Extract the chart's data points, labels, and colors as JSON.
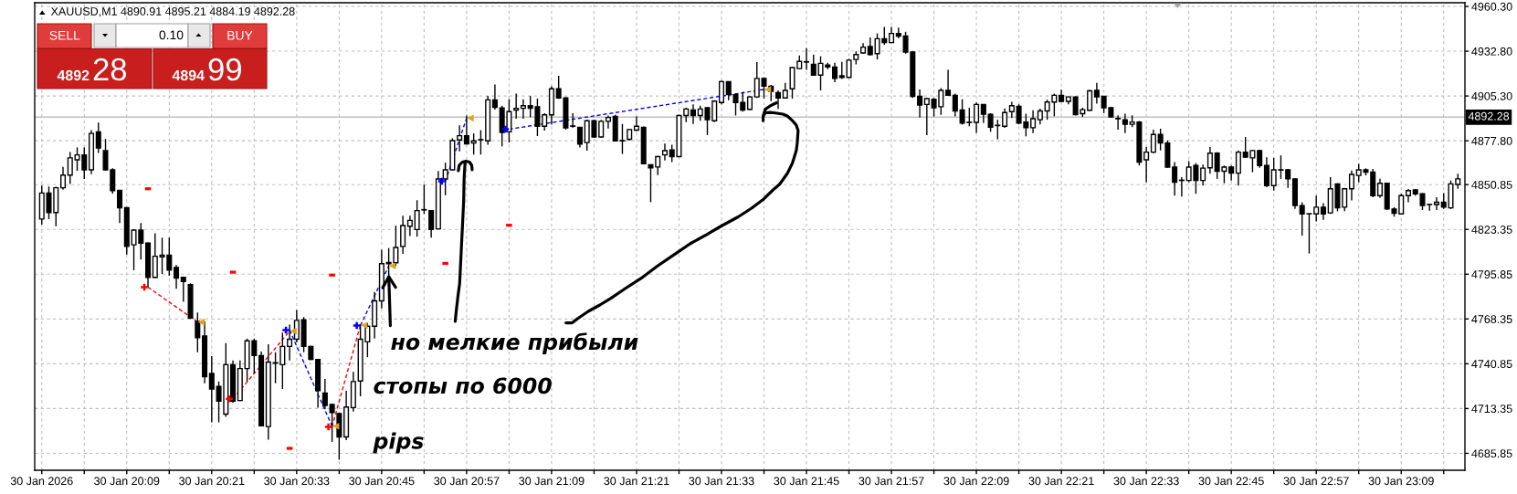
{
  "chart_data": {
    "type": "candlestick",
    "title": "XAUUSD,M1 4890.91 4895.21 4884.19 4892.28",
    "annotations": [
      "SELL",
      "0.10",
      "BUY",
      "4892",
      "28",
      "4894",
      "99",
      {
        "text": "но мелкие прибыли",
        "x": "2026-01-30T20:46",
        "y": 4796
      },
      "стопы по 6000\npips"
    ],
    "xlim": [
      "2026-01-30T19:56",
      "2026-01-30T23:18"
    ],
    "ylim": [
      4675.45,
      4962.55
    ],
    "xticks": [
      {
        "value": "2026-01-30T19:57",
        "label": "30 Jan 2026"
      },
      {
        "value": "2026-01-30T20:03",
        "label": null
      },
      {
        "value": "2026-01-30T20:09",
        "label": "30 Jan 20:09"
      },
      {
        "value": "2026-01-30T20:15",
        "label": null
      },
      {
        "value": "2026-01-30T20:21",
        "label": "30 Jan 20:21"
      },
      {
        "value": "2026-01-30T20:27",
        "label": null
      },
      {
        "value": "2026-01-30T20:33",
        "label": "30 Jan 20:33"
      },
      {
        "value": "2026-01-30T20:39",
        "label": null
      },
      {
        "value": "2026-01-30T20:45",
        "label": "30 Jan 20:45"
      },
      {
        "value": "2026-01-30T20:51",
        "label": null
      },
      {
        "value": "2026-01-30T20:57",
        "label": "30 Jan 20:57"
      },
      {
        "value": "2026-01-30T21:03",
        "label": null
      },
      {
        "value": "2026-01-30T21:09",
        "label": "30 Jan 21:09"
      },
      {
        "value": "2026-01-30T21:15",
        "label": null
      },
      {
        "value": "2026-01-30T21:21",
        "label": "30 Jan 21:21"
      },
      {
        "value": "2026-01-30T21:27",
        "label": null
      },
      {
        "value": "2026-01-30T21:33",
        "label": "30 Jan 21:33"
      },
      {
        "value": "2026-01-30T21:39",
        "label": null
      },
      {
        "value": "2026-01-30T21:45",
        "label": "30 Jan 21:45"
      },
      {
        "value": "2026-01-30T21:51",
        "label": null
      },
      {
        "value": "2026-01-30T21:57",
        "label": "30 Jan 21:57"
      },
      {
        "value": "2026-01-30T22:03",
        "label": null
      },
      {
        "value": "2026-01-30T22:09",
        "label": "30 Jan 22:09"
      },
      {
        "value": "2026-01-30T22:15",
        "label": null
      },
      {
        "value": "2026-01-30T22:21",
        "label": "30 Jan 22:21"
      },
      {
        "value": "2026-01-30T22:27",
        "label": null
      },
      {
        "value": "2026-01-30T22:33",
        "label": "30 Jan 22:33"
      },
      {
        "value": "2026-01-30T22:39",
        "label": null
      },
      {
        "value": "2026-01-30T22:45",
        "label": "30 Jan 22:45"
      },
      {
        "value": "2026-01-30T22:51",
        "label": null
      },
      {
        "value": "2026-01-30T22:57",
        "label": "30 Jan 22:57"
      },
      {
        "value": "2026-01-30T23:03",
        "label": null
      },
      {
        "value": "2026-01-30T23:09",
        "label": "30 Jan 23:09"
      },
      {
        "value": "2026-01-30T23:15",
        "label": null
      }
    ],
    "yticks": [
      4685.85,
      4713.35,
      4740.85,
      4768.35,
      4795.85,
      4823.35,
      4850.85,
      {
        "value": 4877.8,
        "label": "4877.80"
      },
      {
        "value": 4905.3,
        "label": "4905.30"
      },
      {
        "value": 4932.8,
        "label": "4932.80"
      },
      {
        "value": 4960.3,
        "label": "4960.30"
      }
    ],
    "grid": true,
    "ref_lines": [
      {
        "axis": "y",
        "value": 4892.28,
        "label": "4892.28",
        "color": "#c0c0c0"
      }
    ],
    "series": [
      {
        "color": "#000000",
        "x": [
          "2026-01-30T19:57",
          "2026-01-30T19:58",
          "2026-01-30T19:59",
          "2026-01-30T20:00",
          "2026-01-30T20:01",
          "2026-01-30T20:02",
          "2026-01-30T20:03",
          "2026-01-30T20:04",
          "2026-01-30T20:05",
          "2026-01-30T20:06",
          "2026-01-30T20:07",
          "2026-01-30T20:08",
          "2026-01-30T20:09",
          "2026-01-30T20:10",
          "2026-01-30T20:11",
          "2026-01-30T20:12",
          "2026-01-30T20:13",
          "2026-01-30T20:14",
          "2026-01-30T20:15",
          "2026-01-30T20:16",
          "2026-01-30T20:17",
          "2026-01-30T20:18",
          "2026-01-30T20:19",
          "2026-01-30T20:20",
          "2026-01-30T20:21",
          "2026-01-30T20:22",
          "2026-01-30T20:23",
          "2026-01-30T20:24",
          "2026-01-30T20:25",
          "2026-01-30T20:26",
          "2026-01-30T20:27",
          "2026-01-30T20:28",
          "2026-01-30T20:29",
          "2026-01-30T20:30",
          "2026-01-30T20:31",
          "2026-01-30T20:32",
          "2026-01-30T20:33",
          "2026-01-30T20:34",
          "2026-01-30T20:35",
          "2026-01-30T20:36",
          "2026-01-30T20:37",
          "2026-01-30T20:38",
          "2026-01-30T20:39",
          "2026-01-30T20:40",
          "2026-01-30T20:41",
          "2026-01-30T20:42",
          "2026-01-30T20:43",
          "2026-01-30T20:44",
          "2026-01-30T20:45",
          "2026-01-30T20:46",
          "2026-01-30T20:47",
          "2026-01-30T20:48",
          "2026-01-30T20:49",
          "2026-01-30T20:50",
          "2026-01-30T20:51",
          "2026-01-30T20:52",
          "2026-01-30T20:53",
          "2026-01-30T20:54",
          "2026-01-30T20:55",
          "2026-01-30T20:56",
          "2026-01-30T20:57",
          "2026-01-30T20:58",
          "2026-01-30T20:59",
          "2026-01-30T21:00",
          "2026-01-30T21:01",
          "2026-01-30T21:02",
          "2026-01-30T21:03",
          "2026-01-30T21:04",
          "2026-01-30T21:05",
          "2026-01-30T21:06",
          "2026-01-30T21:07",
          "2026-01-30T21:08",
          "2026-01-30T21:09",
          "2026-01-30T21:10",
          "2026-01-30T21:11",
          "2026-01-30T21:12",
          "2026-01-30T21:13",
          "2026-01-30T21:14",
          "2026-01-30T21:15",
          "2026-01-30T21:16",
          "2026-01-30T21:17",
          "2026-01-30T21:18",
          "2026-01-30T21:19",
          "2026-01-30T21:20",
          "2026-01-30T21:21",
          "2026-01-30T21:22",
          "2026-01-30T21:23",
          "2026-01-30T21:24",
          "2026-01-30T21:25",
          "2026-01-30T21:26",
          "2026-01-30T21:27",
          "2026-01-30T21:28",
          "2026-01-30T21:29",
          "2026-01-30T21:30",
          "2026-01-30T21:31",
          "2026-01-30T21:32",
          "2026-01-30T21:33",
          "2026-01-30T21:34",
          "2026-01-30T21:35",
          "2026-01-30T21:36",
          "2026-01-30T21:37",
          "2026-01-30T21:38",
          "2026-01-30T21:39",
          "2026-01-30T21:40",
          "2026-01-30T21:41",
          "2026-01-30T21:42",
          "2026-01-30T21:43",
          "2026-01-30T21:44",
          "2026-01-30T21:45",
          "2026-01-30T21:46",
          "2026-01-30T21:47",
          "2026-01-30T21:48",
          "2026-01-30T21:49",
          "2026-01-30T21:50",
          "2026-01-30T21:51",
          "2026-01-30T21:52",
          "2026-01-30T21:53",
          "2026-01-30T21:54",
          "2026-01-30T21:55",
          "2026-01-30T21:56",
          "2026-01-30T21:57",
          "2026-01-30T21:58",
          "2026-01-30T21:59",
          "2026-01-30T22:00",
          "2026-01-30T22:01",
          "2026-01-30T22:02",
          "2026-01-30T22:03",
          "2026-01-30T22:04",
          "2026-01-30T22:05",
          "2026-01-30T22:06",
          "2026-01-30T22:07",
          "2026-01-30T22:08",
          "2026-01-30T22:09",
          "2026-01-30T22:10",
          "2026-01-30T22:11",
          "2026-01-30T22:12",
          "2026-01-30T22:13",
          "2026-01-30T22:14",
          "2026-01-30T22:15",
          "2026-01-30T22:16",
          "2026-01-30T22:17",
          "2026-01-30T22:18",
          "2026-01-30T22:19",
          "2026-01-30T22:20",
          "2026-01-30T22:21",
          "2026-01-30T22:22",
          "2026-01-30T22:23",
          "2026-01-30T22:24",
          "2026-01-30T22:25",
          "2026-01-30T22:26",
          "2026-01-30T22:27",
          "2026-01-30T22:28",
          "2026-01-30T22:29",
          "2026-01-30T22:30",
          "2026-01-30T22:31",
          "2026-01-30T22:32",
          "2026-01-30T22:33",
          "2026-01-30T22:34",
          "2026-01-30T22:35",
          "2026-01-30T22:36",
          "2026-01-30T22:37",
          "2026-01-30T22:38",
          "2026-01-30T22:39",
          "2026-01-30T22:40",
          "2026-01-30T22:41",
          "2026-01-30T22:42",
          "2026-01-30T22:43",
          "2026-01-30T22:44",
          "2026-01-30T22:45",
          "2026-01-30T22:46",
          "2026-01-30T22:47",
          "2026-01-30T22:48",
          "2026-01-30T22:49",
          "2026-01-30T22:50",
          "2026-01-30T22:51",
          "2026-01-30T22:52",
          "2026-01-30T22:53",
          "2026-01-30T22:54",
          "2026-01-30T22:55",
          "2026-01-30T22:56",
          "2026-01-30T22:57",
          "2026-01-30T22:58",
          "2026-01-30T22:59",
          "2026-01-30T23:00",
          "2026-01-30T23:01",
          "2026-01-30T23:02",
          "2026-01-30T23:03",
          "2026-01-30T23:04",
          "2026-01-30T23:05",
          "2026-01-30T23:06",
          "2026-01-30T23:07",
          "2026-01-30T23:08",
          "2026-01-30T23:09",
          "2026-01-30T23:10",
          "2026-01-30T23:11",
          "2026-01-30T23:12",
          "2026-01-30T23:13",
          "2026-01-30T23:14",
          "2026-01-30T23:15",
          "2026-01-30T23:16",
          "2026-01-30T23:17"
        ],
        "ohlc": [
          [
            4829.7,
            4850.3,
            4826.3,
            4845.7
          ],
          [
            4845.7,
            4849.7,
            4829.7,
            4833.7
          ],
          [
            4833.7,
            4849.5,
            4825.3,
            4848.9
          ],
          [
            4848.9,
            4861.7,
            4847.7,
            4856.7
          ],
          [
            4856.7,
            4870.9,
            4851.3,
            4867.3
          ],
          [
            4866.1,
            4873.7,
            4859.3,
            4869.1
          ],
          [
            4869.1,
            4873.7,
            4854.3,
            4859.9
          ],
          [
            4859.9,
            4884.3,
            4857.3,
            4882.3
          ],
          [
            4883.3,
            4888.9,
            4870.3,
            4873.3
          ],
          [
            4871.7,
            4878.9,
            4859.5,
            4859.9
          ],
          [
            4859.9,
            4860.9,
            4845.3,
            4847.1
          ],
          [
            4847.3,
            4847.5,
            4827.3,
            4836.7
          ],
          [
            4836.7,
            4837.1,
            4807.9,
            4812.9
          ],
          [
            4813.9,
            4823.5,
            4798.3,
            4822.9
          ],
          [
            4822.9,
            4827.3,
            4804.9,
            4814.9
          ],
          [
            4814.9,
            4815.3,
            4787.9,
            4793.9
          ],
          [
            4793.9,
            4820.9,
            4793.5,
            4806.9
          ],
          [
            4806.5,
            4818.3,
            4795.9,
            4807.5
          ],
          [
            4807.5,
            4818.3,
            4794.9,
            4798.3
          ],
          [
            4799.9,
            4801.5,
            4786.9,
            4793.5
          ],
          [
            4793.9,
            4794.3,
            4778.9,
            4791.3
          ],
          [
            4789.5,
            4790.3,
            4768.3,
            4768.9
          ],
          [
            4766.9,
            4772.3,
            4747.9,
            4756.9
          ],
          [
            4757.9,
            4766.9,
            4728.9,
            4732.9
          ],
          [
            4734.9,
            4745.5,
            4704.9,
            4725.3
          ],
          [
            4726.9,
            4729.9,
            4704.9,
            4717.9
          ],
          [
            4709.9,
            4753.5,
            4708.3,
            4740.3
          ],
          [
            4740.3,
            4742.9,
            4716.9,
            4717.9
          ],
          [
            4718.3,
            4742.9,
            4717.9,
            4737.9
          ],
          [
            4737.9,
            4756.3,
            4729.9,
            4754.9
          ],
          [
            4754.9,
            4756.3,
            4734.9,
            4745.9
          ],
          [
            4745.9,
            4748.3,
            4702.3,
            4702.7
          ],
          [
            4702.3,
            4752.9,
            4694.3,
            4741.9
          ],
          [
            4741.5,
            4747.9,
            4728.9,
            4741.2
          ],
          [
            4740.3,
            4759.9,
            4725.3,
            4751.5
          ],
          [
            4751.5,
            4764.9,
            4742.9,
            4755.9
          ],
          [
            4755.9,
            4773.9,
            4753.9,
            4767.5
          ],
          [
            4767.9,
            4769.5,
            4747.9,
            4751.5
          ],
          [
            4751.5,
            4751.9,
            4743.1,
            4743.5
          ],
          [
            4743.5,
            4743.9,
            4713.9,
            4724.3
          ],
          [
            4722.9,
            4731.5,
            4712.9,
            4715.3
          ],
          [
            4715.9,
            4716.1,
            4692.9,
            4710.9
          ],
          [
            4710.3,
            4710.9,
            4681.9,
            4695.9
          ],
          [
            4695.9,
            4724.3,
            4693.9,
            4714.3
          ],
          [
            4713.9,
            4735.9,
            4711.5,
            4729.9
          ],
          [
            4730.3,
            4764.9,
            4720.9,
            4755.9
          ],
          [
            4754.3,
            4765.9,
            4744.9,
            4763.9
          ],
          [
            4763.9,
            4784.9,
            4756.3,
            4779.5
          ],
          [
            4779.5,
            4810.9,
            4774.9,
            4802.3
          ],
          [
            4803.1,
            4811.9,
            4788.3,
            4802.3
          ],
          [
            4802.9,
            4825.7,
            4800.9,
            4812.3
          ],
          [
            4812.9,
            4831.7,
            4808.3,
            4825.7
          ],
          [
            4825.3,
            4831.7,
            4819.3,
            4828.9
          ],
          [
            4823.3,
            4841.3,
            4818.9,
            4834.9
          ],
          [
            4835.3,
            4850.9,
            4832.9,
            4835.5
          ],
          [
            4834.9,
            4835.3,
            4818.3,
            4823.3
          ],
          [
            4823.7,
            4859.3,
            4823.3,
            4854.3
          ],
          [
            4854.3,
            4864.3,
            4844.3,
            4859.9
          ],
          [
            4859.9,
            4879.3,
            4859.5,
            4877.9
          ],
          [
            4878.3,
            4887.3,
            4871.3,
            4880.9
          ],
          [
            4880.9,
            4893.3,
            4875.5,
            4875.9
          ],
          [
            4876.5,
            4882.3,
            4869.3,
            4877.7
          ],
          [
            4878.3,
            4884.3,
            4869.3,
            4878.5
          ],
          [
            4877.7,
            4905.3,
            4875.3,
            4902.9
          ],
          [
            4902.9,
            4912.3,
            4896.9,
            4898.3
          ],
          [
            4897.9,
            4899.3,
            4874.3,
            4882.9
          ],
          [
            4883.3,
            4903.3,
            4876.7,
            4895.7
          ],
          [
            4896.7,
            4906.7,
            4891.3,
            4897.7
          ],
          [
            4897.7,
            4903.3,
            4891.3,
            4899.3
          ],
          [
            4899.3,
            4905.3,
            4892.3,
            4897.7
          ],
          [
            4898.7,
            4903.7,
            4880.7,
            4886.7
          ],
          [
            4886.7,
            4894.7,
            4884.1,
            4893.7
          ],
          [
            4893.7,
            4911.3,
            4887.7,
            4909.7
          ],
          [
            4909.7,
            4917.7,
            4903.5,
            4904.1
          ],
          [
            4904.1,
            4904.5,
            4884.7,
            4885.7
          ],
          [
            4886.9,
            4894.7,
            4885.7,
            4886.7
          ],
          [
            4886.1,
            4886.3,
            4873.7,
            4875.7
          ],
          [
            4876.7,
            4890.7,
            4871.7,
            4890.1
          ],
          [
            4890.1,
            4890.7,
            4879.7,
            4880.1
          ],
          [
            4880.1,
            4890.7,
            4879.7,
            4889.7
          ],
          [
            4889.7,
            4893.3,
            4885.3,
            4892.1
          ],
          [
            4892.7,
            4893.7,
            4877.5,
            4877.7
          ],
          [
            4877.9,
            4888.1,
            4869.7,
            4877.7
          ],
          [
            4878.7,
            4885.1,
            4877.9,
            4884.7
          ],
          [
            4884.3,
            4892.7,
            4883.7,
            4886.7
          ],
          [
            4886.1,
            4886.5,
            4863.3,
            4863.7
          ],
          [
            4863.1,
            4863.3,
            4840.1,
            4861.1
          ],
          [
            4861.7,
            4868.5,
            4856.7,
            4868.1
          ],
          [
            4869.1,
            4876.1,
            4865.7,
            4871.7
          ],
          [
            4872.1,
            4875.3,
            4864.7,
            4868.1
          ],
          [
            4868.1,
            4893.7,
            4867.9,
            4893.3
          ],
          [
            4893.3,
            4898.1,
            4889.3,
            4897.3
          ],
          [
            4896.7,
            4900.1,
            4888.1,
            4893.3
          ],
          [
            4893.3,
            4899.3,
            4890.1,
            4897.3
          ],
          [
            4898.1,
            4898.3,
            4881.3,
            4890.7
          ],
          [
            4890.1,
            4902.7,
            4889.3,
            4902.1
          ],
          [
            4901.3,
            4914.7,
            4900.1,
            4914.1
          ],
          [
            4914.1,
            4914.3,
            4902.7,
            4906.1
          ],
          [
            4906.1,
            4906.7,
            4893.3,
            4901.3
          ],
          [
            4901.3,
            4907.7,
            4895.7,
            4896.7
          ],
          [
            4897.1,
            4905.3,
            4896.7,
            4904.7
          ],
          [
            4904.7,
            4926.1,
            4904.1,
            4916.1
          ],
          [
            4916.1,
            4916.7,
            4903.7,
            4911.3
          ],
          [
            4911.3,
            4912.1,
            4902.1,
            4908.1
          ],
          [
            4907.3,
            4908.7,
            4897.3,
            4904.1
          ],
          [
            4904.1,
            4913.3,
            4903.9,
            4908.7
          ],
          [
            4909.7,
            4923.1,
            4903.7,
            4922.7
          ],
          [
            4922.1,
            4930.1,
            4921.7,
            4926.5
          ],
          [
            4926.1,
            4934.7,
            4921.3,
            4926.3
          ],
          [
            4924.7,
            4930.7,
            4917.7,
            4918.1
          ],
          [
            4918.1,
            4929.7,
            4908.7,
            4925.3
          ],
          [
            4924.3,
            4925.7,
            4921.7,
            4923.1
          ],
          [
            4923.1,
            4925.7,
            4913.7,
            4916.1
          ],
          [
            4917.7,
            4926.3,
            4915.7,
            4916.7
          ],
          [
            4916.7,
            4928.1,
            4916.5,
            4927.3
          ],
          [
            4927.7,
            4932.7,
            4924.7,
            4930.7
          ],
          [
            4931.7,
            4937.7,
            4931.3,
            4935.3
          ],
          [
            4935.7,
            4941.3,
            4930.1,
            4930.7
          ],
          [
            4931.3,
            4943.7,
            4927.7,
            4940.5
          ],
          [
            4940.5,
            4947.7,
            4936.7,
            4938.1
          ],
          [
            4938.1,
            4947.7,
            4938.0,
            4943.7
          ],
          [
            4943.7,
            4947.3,
            4940.7,
            4942.1
          ],
          [
            4942.1,
            4944.7,
            4931.3,
            4932.3
          ],
          [
            4932.3,
            4932.7,
            4904.1,
            4905.1
          ],
          [
            4905.1,
            4909.3,
            4892.1,
            4899.7
          ],
          [
            4900.1,
            4904.1,
            4881.3,
            4903.7
          ],
          [
            4903.3,
            4904.1,
            4892.7,
            4898.1
          ],
          [
            4898.7,
            4910.1,
            4893.7,
            4908.7
          ],
          [
            4908.7,
            4921.3,
            4905.3,
            4905.7
          ],
          [
            4905.7,
            4906.7,
            4892.7,
            4896.1
          ],
          [
            4896.7,
            4903.3,
            4887.7,
            4888.7
          ],
          [
            4889.0,
            4898.1,
            4886.7,
            4889.2
          ],
          [
            4889.1,
            4901.3,
            4882.7,
            4900.1
          ],
          [
            4900.1,
            4900.3,
            4888.7,
            4894.1
          ],
          [
            4894.1,
            4894.7,
            4883.3,
            4886.1
          ],
          [
            4887.1,
            4890.7,
            4878.7,
            4887.3
          ],
          [
            4886.7,
            4897.7,
            4885.7,
            4895.1
          ],
          [
            4895.7,
            4901.7,
            4891.7,
            4899.3
          ],
          [
            4898.9,
            4900.2,
            4887.9,
            4888.7
          ],
          [
            4889.3,
            4894.4,
            4880.5,
            4885.8
          ],
          [
            4885.8,
            4896.5,
            4882.5,
            4891.3
          ],
          [
            4890.7,
            4897.5,
            4887.9,
            4896.1
          ],
          [
            4896.1,
            4903.0,
            4890.7,
            4901.6
          ],
          [
            4901.6,
            4906.7,
            4892.8,
            4905.7
          ],
          [
            4905.7,
            4909.2,
            4901.6,
            4902.0
          ],
          [
            4902.0,
            4905.1,
            4900.2,
            4904.7
          ],
          [
            4904.7,
            4905.1,
            4893.4,
            4893.8
          ],
          [
            4894.4,
            4898.1,
            4892.4,
            4896.9
          ],
          [
            4896.5,
            4909.2,
            4896.1,
            4908.4
          ],
          [
            4908.8,
            4913.3,
            4900.6,
            4904.7
          ],
          [
            4905.1,
            4905.3,
            4894.8,
            4898.1
          ],
          [
            4898.1,
            4898.5,
            4892.0,
            4892.4
          ],
          [
            4891.5,
            4893.4,
            4884.6,
            4891.3
          ],
          [
            4890.7,
            4894.4,
            4882.5,
            4887.9
          ],
          [
            4887.9,
            4893.4,
            4886.2,
            4889.3
          ],
          [
            4889.3,
            4889.9,
            4862.6,
            4864.7
          ],
          [
            4866.1,
            4873.9,
            4852.4,
            4870.8
          ],
          [
            4870.8,
            4884.6,
            4870.2,
            4881.7
          ],
          [
            4881.7,
            4885.2,
            4871.9,
            4876.4
          ],
          [
            4876.4,
            4878.0,
            4861.2,
            4861.6
          ],
          [
            4861.6,
            4864.7,
            4844.1,
            4852.4
          ],
          [
            4853.6,
            4855.4,
            4843.5,
            4853.4
          ],
          [
            4853.4,
            4865.3,
            4852.4,
            4861.6
          ],
          [
            4862.6,
            4864.1,
            4845.2,
            4853.4
          ],
          [
            4853.4,
            4863.2,
            4850.3,
            4861.0
          ],
          [
            4861.2,
            4873.9,
            4857.5,
            4870.2
          ],
          [
            4870.2,
            4870.8,
            4854.4,
            4859.1
          ],
          [
            4859.1,
            4862.6,
            4851.7,
            4861.6
          ],
          [
            4861.6,
            4862.6,
            4853.4,
            4857.9
          ],
          [
            4857.9,
            4871.8,
            4850.3,
            4870.8
          ],
          [
            4870.8,
            4880.1,
            4867.3,
            4867.7
          ],
          [
            4867.3,
            4872.3,
            4858.5,
            4871.8
          ],
          [
            4871.8,
            4872.3,
            4861.2,
            4862.6
          ],
          [
            4862.6,
            4867.7,
            4849.3,
            4850.3
          ],
          [
            4850.3,
            4867.3,
            4847.2,
            4859.9
          ],
          [
            4860.0,
            4868.8,
            4854.4,
            4859.8
          ],
          [
            4859.9,
            4860.5,
            4848.9,
            4854.4
          ],
          [
            4854.4,
            4854.6,
            4835.9,
            4838.0
          ],
          [
            4838.0,
            4840.0,
            4819.5,
            4832.9
          ],
          [
            4832.9,
            4833.1,
            4808.6,
            4833.0
          ],
          [
            4832.9,
            4844.1,
            4828.3,
            4837.0
          ],
          [
            4837.0,
            4839.4,
            4829.2,
            4832.9
          ],
          [
            4833.5,
            4855.4,
            4832.9,
            4848.3
          ],
          [
            4851.3,
            4851.7,
            4834.5,
            4836.6
          ],
          [
            4837.0,
            4848.9,
            4834.5,
            4848.3
          ],
          [
            4848.3,
            4859.5,
            4841.1,
            4857.1
          ],
          [
            4856.5,
            4863.6,
            4852.4,
            4859.9
          ],
          [
            4859.9,
            4860.9,
            4856.5,
            4858.5
          ],
          [
            4858.5,
            4860.5,
            4843.1,
            4844.1
          ],
          [
            4844.1,
            4854.4,
            4842.7,
            4851.7
          ],
          [
            4851.7,
            4851.9,
            4835.3,
            4835.9
          ],
          [
            4835.9,
            4837.0,
            4831.2,
            4833.3
          ],
          [
            4832.9,
            4845.2,
            4832.5,
            4844.1
          ],
          [
            4844.1,
            4848.2,
            4840.0,
            4847.2
          ],
          [
            4847.6,
            4848.2,
            4844.1,
            4845.2
          ],
          [
            4845.2,
            4845.6,
            4835.3,
            4838.0
          ],
          [
            4838.6,
            4839.0,
            4834.9,
            4838.7
          ],
          [
            4838.6,
            4843.1,
            4835.3,
            4840.0
          ],
          [
            4840.0,
            4845.6,
            4836.0,
            4837.0
          ],
          [
            4836.6,
            4853.4,
            4835.9,
            4851.3
          ],
          [
            4851.0,
            4857.5,
            4848.3,
            4854.4
          ]
        ],
        "colors": [
          "#ffffff",
          "#000000",
          "#ffffff",
          "#ffffff",
          "#ffffff",
          "#ffffff",
          "#000000",
          "#ffffff",
          "#000000",
          "#000000",
          "#000000",
          "#000000",
          "#000000",
          "#ffffff",
          "#000000",
          "#000000",
          "#ffffff",
          "#ffffff",
          "#000000",
          "#000000",
          "#000000",
          "#000000",
          "#000000",
          "#000000",
          "#000000",
          "#000000",
          "#ffffff",
          "#000000",
          "#ffffff",
          "#ffffff",
          "#000000",
          "#000000",
          "#ffffff",
          "#000000",
          "#ffffff",
          "#ffffff",
          "#ffffff",
          "#000000",
          "#000000",
          "#000000",
          "#000000",
          "#000000",
          "#000000",
          "#ffffff",
          "#ffffff",
          "#ffffff",
          "#ffffff",
          "#ffffff",
          "#ffffff",
          "#000000",
          "#ffffff",
          "#ffffff",
          "#ffffff",
          "#ffffff",
          "#ffffff",
          "#000000",
          "#ffffff",
          "#ffffff",
          "#ffffff",
          "#ffffff",
          "#000000",
          "#ffffff",
          "#ffffff",
          "#ffffff",
          "#000000",
          "#000000",
          "#ffffff",
          "#ffffff",
          "#ffffff",
          "#000000",
          "#000000",
          "#ffffff",
          "#ffffff",
          "#000000",
          "#000000",
          "#000000",
          "#000000",
          "#ffffff",
          "#000000",
          "#ffffff",
          "#ffffff",
          "#000000",
          "#000000",
          "#ffffff",
          "#ffffff",
          "#000000",
          "#000000",
          "#ffffff",
          "#ffffff",
          "#000000",
          "#ffffff",
          "#ffffff",
          "#000000",
          "#ffffff",
          "#000000",
          "#ffffff",
          "#ffffff",
          "#000000",
          "#000000",
          "#000000",
          "#ffffff",
          "#ffffff",
          "#000000",
          "#000000",
          "#000000",
          "#ffffff",
          "#ffffff",
          "#ffffff",
          "#ffffff",
          "#000000",
          "#ffffff",
          "#000000",
          "#000000",
          "#000000",
          "#ffffff",
          "#ffffff",
          "#ffffff",
          "#000000",
          "#ffffff",
          "#000000",
          "#ffffff",
          "#000000",
          "#000000",
          "#000000",
          "#000000",
          "#ffffff",
          "#000000",
          "#ffffff",
          "#000000",
          "#000000",
          "#000000",
          "#ffffff",
          "#ffffff",
          "#000000",
          "#000000",
          "#ffffff",
          "#ffffff",
          "#ffffff",
          "#000000",
          "#000000",
          "#ffffff",
          "#ffffff",
          "#ffffff",
          "#ffffff",
          "#000000",
          "#ffffff",
          "#000000",
          "#ffffff",
          "#ffffff",
          "#000000",
          "#000000",
          "#000000",
          "#000000",
          "#000000",
          "#ffffff",
          "#000000",
          "#ffffff",
          "#ffffff",
          "#000000",
          "#000000",
          "#000000",
          "#000000",
          "#ffffff",
          "#000000",
          "#ffffff",
          "#ffffff",
          "#000000",
          "#ffffff",
          "#000000",
          "#ffffff",
          "#000000",
          "#ffffff",
          "#000000",
          "#000000",
          "#ffffff",
          "#000000",
          "#000000",
          "#000000",
          "#000000",
          "#ffffff",
          "#ffffff",
          "#000000",
          "#ffffff",
          "#000000",
          "#ffffff",
          "#ffffff",
          "#ffffff",
          "#000000",
          "#000000",
          "#ffffff",
          "#000000",
          "#000000",
          "#ffffff",
          "#ffffff",
          "#000000",
          "#000000",
          "#ffffff",
          "#ffffff",
          "#000000",
          "#ffffff",
          "#ffffff"
        ]
      },
      {
        "type": "line",
        "color": "#ff0000",
        "line_style": "dashed",
        "x": [
          "2026-01-30T20:12",
          "2026-01-30T20:19"
        ],
        "values": [
          4787.9,
          4766.5
        ]
      },
      {
        "type": "line",
        "color": "#ff0000",
        "line_style": "dashed",
        "x": [
          "2026-01-30T20:24",
          "2026-01-30T20:32"
        ],
        "values": [
          4719.3,
          4760.9
        ]
      },
      {
        "type": "line",
        "color": "#0000ff",
        "line_style": "dashed",
        "x": [
          "2026-01-30T20:32",
          "2026-01-30T20:38"
        ],
        "values": [
          4761.5,
          4702.5
        ]
      },
      {
        "type": "line",
        "color": "#ff0000",
        "line_style": "dashed",
        "x": [
          "2026-01-30T20:38",
          "2026-01-30T20:42"
        ],
        "values": [
          4702.1,
          4764.5
        ]
      },
      {
        "type": "line",
        "color": "#0000ff",
        "line_style": "dashed",
        "x": [
          "2026-01-30T20:42",
          "2026-01-30T20:46"
        ],
        "values": [
          4764.3,
          4800.9
        ]
      },
      {
        "type": "line",
        "color": "#0000ff",
        "line_style": "dashed",
        "x": [
          "2026-01-30T20:54",
          "2026-01-30T20:57"
        ],
        "values": [
          4852.9,
          4891.7
        ]
      },
      {
        "type": "line",
        "color": "#0000ff",
        "line_style": "dashed",
        "x": [
          "2026-01-30T21:03",
          "2026-01-30T21:39"
        ],
        "values": [
          4884.9,
          4909.3
        ]
      },
      {
        "type": "scatter",
        "color": "#ff0000",
        "marker": "cross",
        "x": [
          "2026-01-30T20:12",
          "2026-01-30T20:24",
          "2026-01-30T20:38"
        ],
        "values": [
          4787.9,
          4719.3,
          4702.1
        ]
      },
      {
        "type": "scatter",
        "color": "#0000ff",
        "marker": "cross",
        "x": [
          "2026-01-30T20:32",
          "2026-01-30T20:42",
          "2026-01-30T20:54",
          "2026-01-30T21:03"
        ],
        "values": [
          4761.5,
          4764.3,
          4852.9,
          4884.9
        ]
      },
      {
        "type": "scatter",
        "color": "#daa520",
        "marker": "triangle",
        "x": [
          "2026-01-30T20:19",
          "2026-01-30T20:32",
          "2026-01-30T20:38",
          "2026-01-30T20:42",
          "2026-01-30T20:46",
          "2026-01-30T20:57",
          "2026-01-30T21:39"
        ],
        "values": [
          4766.5,
          4760.9,
          4702.5,
          4764.5,
          4800.9,
          4891.7,
          4909.3
        ]
      },
      {
        "type": "scatter",
        "color": "#ff0000",
        "marker": "square",
        "x": [
          "2026-01-30T20:12",
          "2026-01-30T20:24",
          "2026-01-30T20:32",
          "2026-01-30T20:38",
          "2026-01-30T20:54",
          "2026-01-30T21:03"
        ],
        "values": [
          4848.3,
          4797.1,
          4688.9,
          4795.3,
          4802.5,
          4825.9
        ]
      }
    ]
  }
}
